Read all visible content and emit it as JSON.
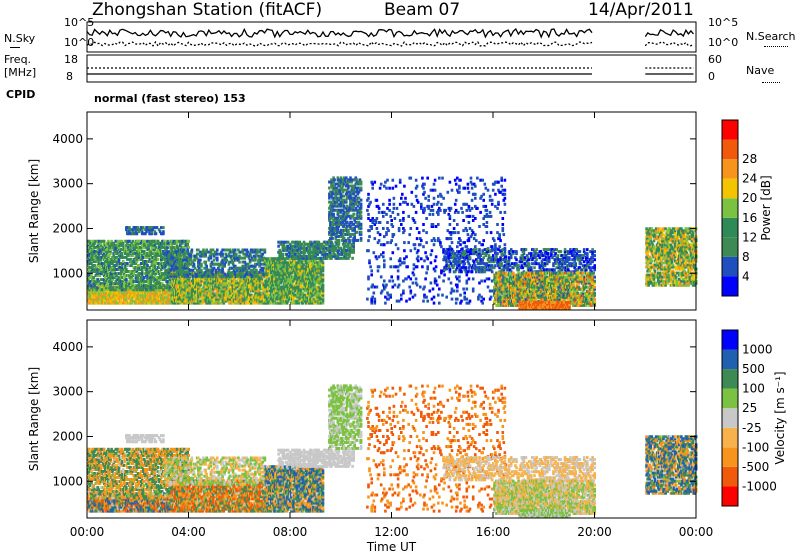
{
  "header": {
    "station": "Zhongshan Station (fitACF)",
    "beam": "Beam 07",
    "date": "14/Apr/2011"
  },
  "strip": {
    "nsky_label": "N.Sky",
    "nsky_ticks": [
      "10^5",
      "10^0"
    ],
    "nsearch_label": "N.Search",
    "nsearch_ticks": [
      "10^5",
      "10^0"
    ],
    "freq_label": "Freq.",
    "freq_unit": "[MHz]",
    "freq_ticks": [
      "18",
      "8"
    ],
    "nave_label": "Nave",
    "nave_ticks": [
      "60",
      "0"
    ],
    "cpid_label": "CPID",
    "cpid_value": "normal (fast stereo) 153"
  },
  "colors": {
    "power": [
      "#0000ff",
      "#1f4fbf",
      "#3d8a55",
      "#2e8b57",
      "#7cc242",
      "#f5c400",
      "#f7941d",
      "#f05a0a",
      "#ff0000"
    ],
    "velocity": [
      "#ff0000",
      "#f05a0a",
      "#f7941d",
      "#f7b24b",
      "#c8c8c8",
      "#7cc242",
      "#3d8a55",
      "#2060b0",
      "#0000ff"
    ]
  },
  "chart_data": [
    {
      "type": "heatmap",
      "name": "power",
      "xlabel": "Time UT",
      "ylabel": "Slant Range [km]",
      "x_ticks": [
        "00:00",
        "04:00",
        "08:00",
        "12:00",
        "16:00",
        "20:00",
        "00:00"
      ],
      "x_range_hours": [
        0,
        24
      ],
      "y_ticks": [
        1000,
        2000,
        3000,
        4000
      ],
      "ylim": [
        180,
        4600
      ],
      "colorbar_label": "Power [dB]",
      "colorbar_ticks": [
        "4",
        "8",
        "12",
        "16",
        "20",
        "24",
        "28"
      ],
      "colorbar_range": [
        0,
        32
      ],
      "data_gap_hours": [
        20.0,
        22.0
      ]
    },
    {
      "type": "heatmap",
      "name": "velocity",
      "xlabel": "Time UT",
      "ylabel": "Slant Range [km]",
      "x_ticks": [
        "00:00",
        "04:00",
        "08:00",
        "12:00",
        "16:00",
        "20:00",
        "00:00"
      ],
      "x_range_hours": [
        0,
        24
      ],
      "y_ticks": [
        1000,
        2000,
        3000,
        4000
      ],
      "ylim": [
        180,
        4600
      ],
      "colorbar_label": "Velocity [m s⁻¹]",
      "colorbar_ticks": [
        "-1000",
        "-500",
        "-100",
        "-25",
        "25",
        "100",
        "500",
        "1000"
      ],
      "data_gap_hours": [
        20.0,
        22.0
      ]
    }
  ]
}
